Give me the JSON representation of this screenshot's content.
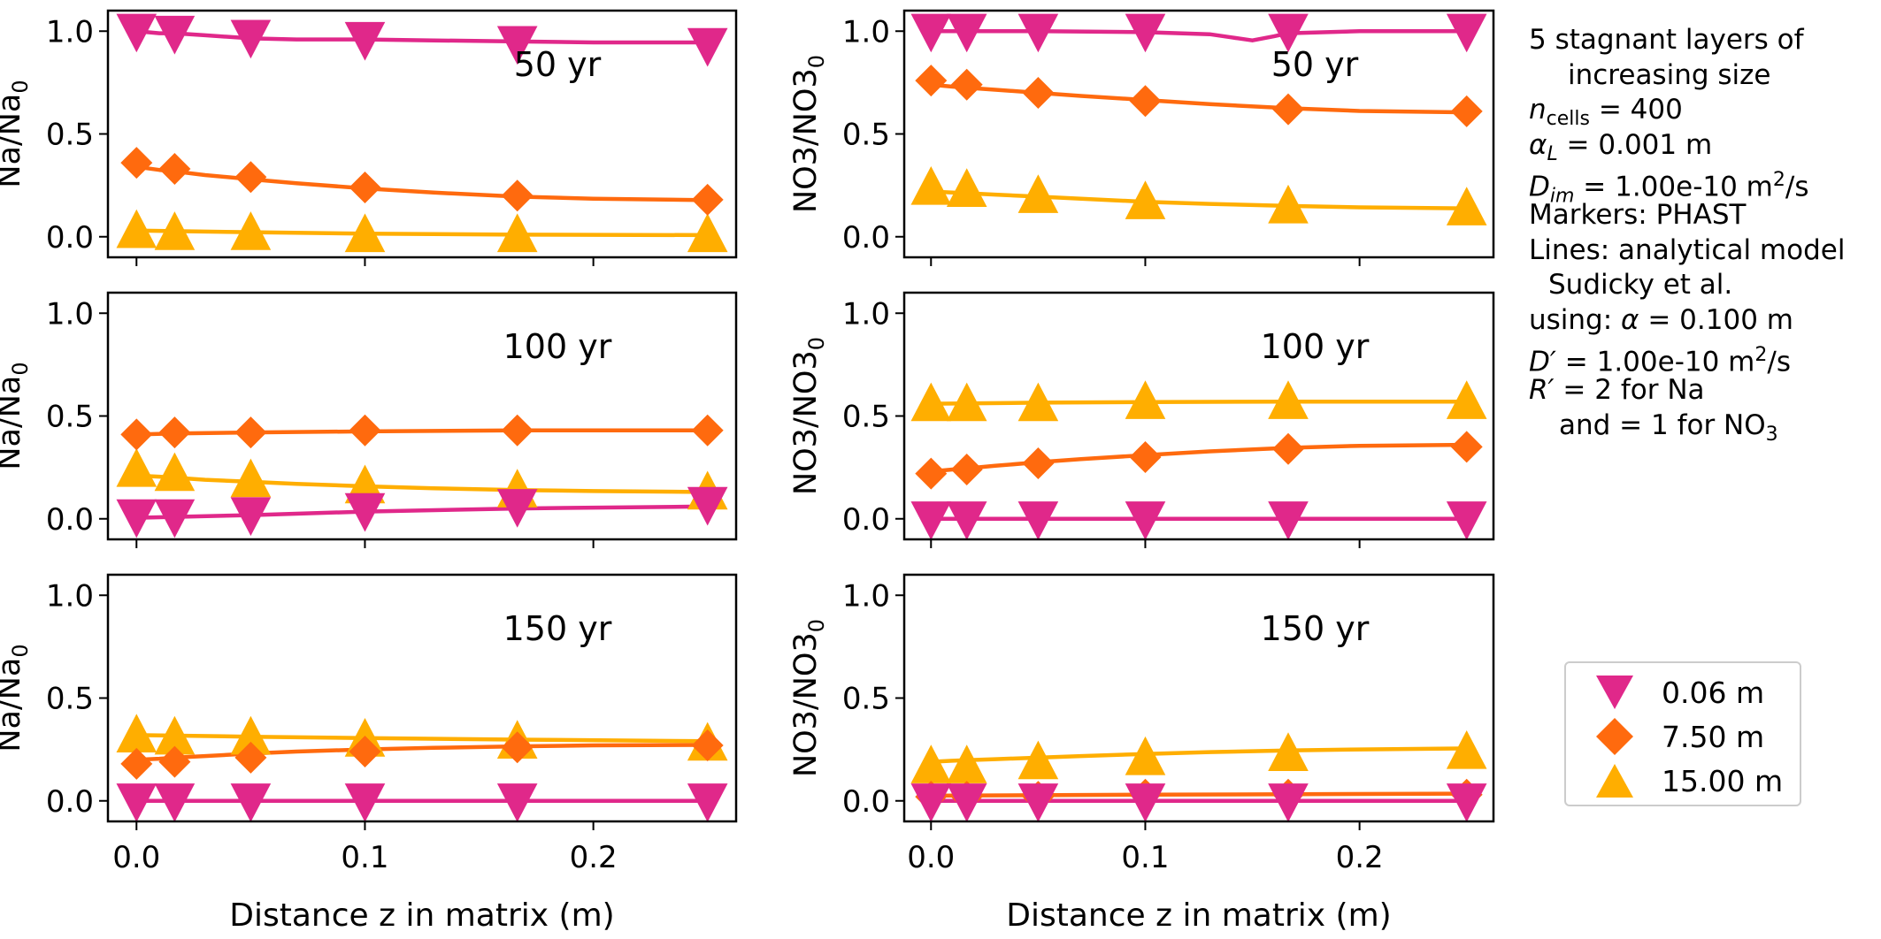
{
  "chart_data": [
    {
      "type": "line",
      "panel": "Na 50 yr",
      "label": "50 yr",
      "ylabel": "Na/Na",
      "ylabel_sub": "0",
      "xlabel": "",
      "xlim": [
        -0.0125,
        0.2625
      ],
      "ylim": [
        -0.1,
        1.1
      ],
      "show_xticklabels": false,
      "x": [
        0.0,
        0.0167,
        0.05,
        0.1,
        0.1667,
        0.25
      ],
      "series": [
        {
          "name": "0.06 m",
          "marker": "tri-down",
          "color": "#E0288A",
          "values": [
            1.0,
            0.99,
            0.97,
            0.96,
            0.94,
            0.93
          ],
          "line_x": [
            0.0,
            0.01,
            0.0167,
            0.03,
            0.05,
            0.07,
            0.1,
            0.13,
            0.1667,
            0.2,
            0.25
          ],
          "line_y": [
            1.0,
            0.99,
            0.99,
            0.98,
            0.965,
            0.96,
            0.96,
            0.955,
            0.95,
            0.945,
            0.945
          ]
        },
        {
          "name": "7.50 m",
          "marker": "diamond",
          "color": "#FF6A0E",
          "values": [
            0.36,
            0.33,
            0.29,
            0.24,
            0.2,
            0.18
          ],
          "line_x": [
            0.0,
            0.01,
            0.0167,
            0.03,
            0.05,
            0.07,
            0.1,
            0.13,
            0.1667,
            0.2,
            0.25
          ],
          "line_y": [
            0.34,
            0.325,
            0.318,
            0.3,
            0.28,
            0.26,
            0.235,
            0.215,
            0.195,
            0.185,
            0.178
          ]
        },
        {
          "name": "15.00 m",
          "marker": "tri-up",
          "color": "#FFAE00",
          "values": [
            0.03,
            0.02,
            0.02,
            0.01,
            0.01,
            0.01
          ],
          "line_x": [
            0.0,
            0.05,
            0.1,
            0.1667,
            0.25
          ],
          "line_y": [
            0.03,
            0.022,
            0.015,
            0.01,
            0.008
          ]
        }
      ]
    },
    {
      "type": "line",
      "panel": "NO3 50 yr",
      "label": "50 yr",
      "ylabel": "NO3/NO3",
      "ylabel_sub": "0",
      "xlabel": "",
      "xlim": [
        -0.0125,
        0.2625
      ],
      "ylim": [
        -0.1,
        1.1
      ],
      "show_xticklabels": false,
      "x": [
        0.0,
        0.0167,
        0.05,
        0.1,
        0.1667,
        0.25
      ],
      "series": [
        {
          "name": "0.06 m",
          "marker": "tri-down",
          "color": "#E0288A",
          "values": [
            1.0,
            1.0,
            1.0,
            1.0,
            1.0,
            1.0
          ],
          "line_x": [
            0.0,
            0.05,
            0.1,
            0.13,
            0.14,
            0.15,
            0.16,
            0.1667,
            0.2,
            0.25
          ],
          "line_y": [
            1.0,
            1.0,
            0.995,
            0.985,
            0.97,
            0.955,
            0.975,
            0.99,
            1.0,
            1.0
          ]
        },
        {
          "name": "7.50 m",
          "marker": "diamond",
          "color": "#FF6A0E",
          "values": [
            0.76,
            0.74,
            0.7,
            0.66,
            0.62,
            0.61
          ],
          "line_x": [
            0.0,
            0.01,
            0.0167,
            0.03,
            0.05,
            0.07,
            0.1,
            0.13,
            0.1667,
            0.2,
            0.25
          ],
          "line_y": [
            0.74,
            0.73,
            0.725,
            0.715,
            0.7,
            0.685,
            0.665,
            0.645,
            0.625,
            0.612,
            0.605
          ]
        },
        {
          "name": "15.00 m",
          "marker": "tri-up",
          "color": "#FFAE00",
          "values": [
            0.24,
            0.23,
            0.2,
            0.17,
            0.15,
            0.14
          ],
          "line_x": [
            0.0,
            0.01,
            0.0167,
            0.03,
            0.05,
            0.07,
            0.1,
            0.13,
            0.1667,
            0.2,
            0.25
          ],
          "line_y": [
            0.22,
            0.215,
            0.212,
            0.205,
            0.195,
            0.185,
            0.17,
            0.16,
            0.15,
            0.143,
            0.138
          ]
        }
      ]
    },
    {
      "type": "line",
      "panel": "Na 100 yr",
      "label": "100 yr",
      "ylabel": "Na/Na",
      "ylabel_sub": "0",
      "xlabel": "",
      "xlim": [
        -0.0125,
        0.2625
      ],
      "ylim": [
        -0.1,
        1.1
      ],
      "show_xticklabels": false,
      "x": [
        0.0,
        0.0167,
        0.05,
        0.1,
        0.1667,
        0.25
      ],
      "series": [
        {
          "name": "0.06 m",
          "marker": "tri-down",
          "color": "#E0288A",
          "values": [
            0.01,
            0.01,
            0.02,
            0.04,
            0.06,
            0.07
          ],
          "line_x": [
            0.0,
            0.05,
            0.1,
            0.1667,
            0.25
          ],
          "line_y": [
            0.005,
            0.018,
            0.035,
            0.05,
            0.06
          ]
        },
        {
          "name": "7.50 m",
          "marker": "diamond",
          "color": "#FF6A0E",
          "values": [
            0.41,
            0.42,
            0.42,
            0.43,
            0.43,
            0.43
          ],
          "line_x": [
            0.0,
            0.0167,
            0.05,
            0.1,
            0.1667,
            0.25
          ],
          "line_y": [
            0.41,
            0.415,
            0.42,
            0.425,
            0.43,
            0.43
          ]
        },
        {
          "name": "15.00 m",
          "marker": "tri-up",
          "color": "#FFAE00",
          "values": [
            0.24,
            0.22,
            0.19,
            0.16,
            0.14,
            0.13
          ],
          "line_x": [
            0.0,
            0.01,
            0.0167,
            0.03,
            0.05,
            0.07,
            0.1,
            0.13,
            0.1667,
            0.2,
            0.25
          ],
          "line_y": [
            0.21,
            0.205,
            0.2,
            0.19,
            0.18,
            0.17,
            0.158,
            0.148,
            0.14,
            0.135,
            0.13
          ]
        }
      ]
    },
    {
      "type": "line",
      "panel": "NO3 100 yr",
      "label": "100 yr",
      "ylabel": "NO3/NO3",
      "ylabel_sub": "0",
      "xlabel": "",
      "xlim": [
        -0.0125,
        0.2625
      ],
      "ylim": [
        -0.1,
        1.1
      ],
      "show_xticklabels": false,
      "x": [
        0.0,
        0.0167,
        0.05,
        0.1,
        0.1667,
        0.25
      ],
      "series": [
        {
          "name": "0.06 m",
          "marker": "tri-down",
          "color": "#E0288A",
          "values": [
            0.0,
            0.0,
            0.0,
            0.0,
            0.0,
            0.0
          ],
          "line_x": [
            0.0,
            0.25
          ],
          "line_y": [
            0.0,
            0.0
          ]
        },
        {
          "name": "7.50 m",
          "marker": "diamond",
          "color": "#FF6A0E",
          "values": [
            0.22,
            0.24,
            0.27,
            0.3,
            0.34,
            0.35
          ],
          "line_x": [
            0.0,
            0.01,
            0.0167,
            0.03,
            0.05,
            0.07,
            0.1,
            0.13,
            0.1667,
            0.2,
            0.25
          ],
          "line_y": [
            0.23,
            0.24,
            0.245,
            0.258,
            0.275,
            0.29,
            0.31,
            0.328,
            0.345,
            0.355,
            0.36
          ]
        },
        {
          "name": "15.00 m",
          "marker": "tri-up",
          "color": "#FFAE00",
          "values": [
            0.56,
            0.56,
            0.56,
            0.57,
            0.57,
            0.57
          ],
          "line_x": [
            0.0,
            0.05,
            0.1,
            0.1667,
            0.25
          ],
          "line_y": [
            0.56,
            0.565,
            0.568,
            0.57,
            0.57
          ]
        }
      ]
    },
    {
      "type": "line",
      "panel": "Na 150 yr",
      "label": "150 yr",
      "ylabel": "Na/Na",
      "ylabel_sub": "0",
      "xlabel": "Distance z in matrix (m)",
      "xlim": [
        -0.0125,
        0.2625
      ],
      "ylim": [
        -0.1,
        1.1
      ],
      "show_xticklabels": true,
      "x": [
        0.0,
        0.0167,
        0.05,
        0.1,
        0.1667,
        0.25
      ],
      "series": [
        {
          "name": "0.06 m",
          "marker": "tri-down",
          "color": "#E0288A",
          "values": [
            0.0,
            0.0,
            0.0,
            0.0,
            0.0,
            0.0
          ],
          "line_x": [
            0.0,
            0.25
          ],
          "line_y": [
            0.0,
            0.0
          ]
        },
        {
          "name": "7.50 m",
          "marker": "diamond",
          "color": "#FF6A0E",
          "values": [
            0.18,
            0.19,
            0.21,
            0.24,
            0.26,
            0.27
          ],
          "line_x": [
            0.0,
            0.01,
            0.0167,
            0.03,
            0.05,
            0.07,
            0.1,
            0.13,
            0.1667,
            0.2,
            0.25
          ],
          "line_y": [
            0.2,
            0.205,
            0.21,
            0.218,
            0.23,
            0.24,
            0.25,
            0.258,
            0.265,
            0.27,
            0.272
          ]
        },
        {
          "name": "15.00 m",
          "marker": "tri-up",
          "color": "#FFAE00",
          "values": [
            0.32,
            0.31,
            0.31,
            0.3,
            0.29,
            0.28
          ],
          "line_x": [
            0.0,
            0.05,
            0.1,
            0.1667,
            0.25
          ],
          "line_y": [
            0.32,
            0.312,
            0.305,
            0.298,
            0.29
          ]
        }
      ]
    },
    {
      "type": "line",
      "panel": "NO3 150 yr",
      "label": "150 yr",
      "ylabel": "NO3/NO3",
      "ylabel_sub": "0",
      "xlabel": "Distance z in matrix (m)",
      "xlim": [
        -0.0125,
        0.2625
      ],
      "ylim": [
        -0.1,
        1.1
      ],
      "show_xticklabels": true,
      "x": [
        0.0,
        0.0167,
        0.05,
        0.1,
        0.1667,
        0.25
      ],
      "series": [
        {
          "name": "0.06 m",
          "marker": "tri-down",
          "color": "#E0288A",
          "values": [
            0.0,
            0.0,
            0.0,
            0.0,
            0.0,
            0.0
          ],
          "line_x": [
            0.0,
            0.25
          ],
          "line_y": [
            0.0,
            0.0
          ]
        },
        {
          "name": "7.50 m",
          "marker": "diamond",
          "color": "#FF6A0E",
          "values": [
            0.02,
            0.02,
            0.02,
            0.03,
            0.03,
            0.03
          ],
          "line_x": [
            0.0,
            0.1,
            0.25
          ],
          "line_y": [
            0.025,
            0.03,
            0.035
          ]
        },
        {
          "name": "15.00 m",
          "marker": "tri-up",
          "color": "#FFAE00",
          "values": [
            0.17,
            0.17,
            0.19,
            0.21,
            0.23,
            0.24
          ],
          "line_x": [
            0.0,
            0.01,
            0.0167,
            0.03,
            0.05,
            0.07,
            0.1,
            0.13,
            0.1667,
            0.2,
            0.25
          ],
          "line_y": [
            0.19,
            0.195,
            0.198,
            0.203,
            0.21,
            0.218,
            0.228,
            0.237,
            0.245,
            0.25,
            0.255
          ]
        }
      ]
    }
  ],
  "axis": {
    "yticks": [
      "0.0",
      "0.5",
      "1.0"
    ],
    "ytick_values": [
      0.0,
      0.5,
      1.0
    ],
    "xticks": [
      "0.0",
      "0.1",
      "0.2"
    ],
    "xtick_values": [
      0.0,
      0.1,
      0.2
    ]
  },
  "legend": {
    "placement": "right",
    "entries": [
      {
        "label": "0.06 m",
        "marker": "tri-down",
        "color": "#E0288A"
      },
      {
        "label": "7.50 m",
        "marker": "diamond",
        "color": "#FF6A0E"
      },
      {
        "label": "15.00 m",
        "marker": "tri-up",
        "color": "#FFAE00"
      }
    ]
  },
  "annotation": {
    "line1": "5 stagnant layers of",
    "line2": "increasing size",
    "n_sym": "n",
    "n_sub": "cells",
    "n_val": " = 400",
    "alpha_sym": "α",
    "alpha_sub": "L",
    "alpha_val": " = 0.001 m",
    "d_sym": "D",
    "d_sub": "im",
    "d_val": " = 1.00e-10 m",
    "d_sup": "2",
    "d_unit": "/s",
    "markers": "Markers: PHAST",
    "lines": "Lines: analytical model",
    "sudicky": "Sudicky et al.",
    "using_pre": "using: ",
    "using_sym": "α",
    "using_val": " = 0.100 m",
    "dp_sym": "D′",
    "dp_val": " = 1.00e-10 m",
    "dp_sup": "2",
    "dp_unit": "/s",
    "rp_sym": "R′",
    "rp_val": " = 2 for Na",
    "and_text": "and = 1 for NO",
    "and_sub": "3"
  }
}
